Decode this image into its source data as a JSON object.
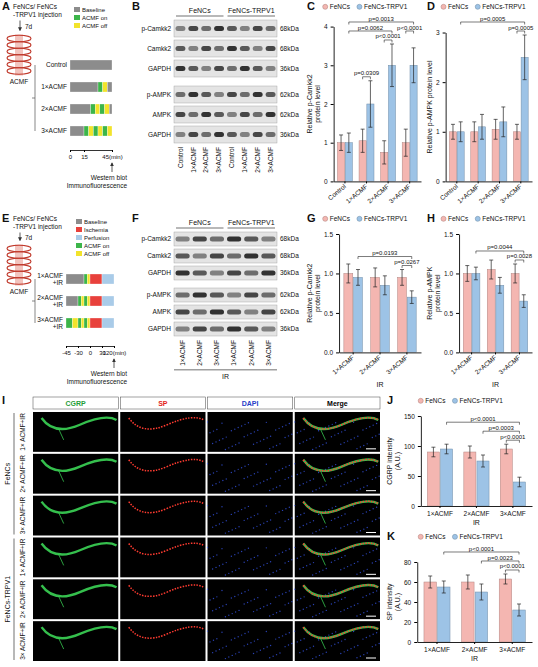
{
  "panels": {
    "A": {
      "panel_label": "A",
      "injection": "FeNCs/ FeNCs -TRPV1 injection",
      "interval": "7d",
      "device": "ACMF",
      "states": [
        {
          "name": "Baseline",
          "color": "#8c8c8c"
        },
        {
          "name": "ACMF on",
          "color": "#3cb54a"
        },
        {
          "name": "ACMF off",
          "color": "#f2e32b"
        }
      ],
      "rows": [
        {
          "label": "Control",
          "segments": [
            [
              0,
              0,
              45
            ]
          ]
        },
        {
          "label": "1×ACMF",
          "segments": [
            [
              0,
              0,
              30
            ],
            [
              1,
              30,
              35
            ],
            [
              2,
              35,
              40
            ],
            [
              0,
              40,
              45
            ]
          ]
        },
        {
          "label": "2×ACMF",
          "segments": [
            [
              0,
              0,
              22
            ],
            [
              1,
              22,
              27
            ],
            [
              2,
              27,
              32
            ],
            [
              1,
              32,
              37
            ],
            [
              2,
              37,
              42
            ],
            [
              0,
              42,
              45
            ]
          ]
        },
        {
          "label": "3×ACMF",
          "segments": [
            [
              0,
              0,
              15
            ],
            [
              1,
              15,
              20
            ],
            [
              2,
              20,
              25
            ],
            [
              1,
              25,
              30
            ],
            [
              2,
              30,
              35
            ],
            [
              1,
              35,
              40
            ],
            [
              2,
              40,
              45
            ]
          ]
        }
      ],
      "time_ticks": [
        0,
        15,
        {
          "value": 45,
          "label": "45(min)"
        }
      ],
      "readouts": [
        "Western blot",
        "Immunofluorescence"
      ]
    },
    "B": {
      "panel_label": "B",
      "groups": [
        "FeNCs",
        "FeNCs-TRPV1"
      ],
      "lanes": [
        "Control",
        "1×ACMF",
        "2×ACMF",
        "3×ACMF",
        "Control",
        "1×ACMF",
        "2×ACMF",
        "3×ACMF"
      ],
      "rows": [
        {
          "label": "p-Camkk2",
          "size": "68kDa"
        },
        {
          "label": "Camkk2",
          "size": "68kDa"
        },
        {
          "label": "GAPDH",
          "size": "36kDa"
        },
        {
          "label": "p-AMPK",
          "size": "62kDa"
        },
        {
          "label": "AMPK",
          "size": "62kDa"
        },
        {
          "label": "GAPDH",
          "size": "36kDa"
        }
      ]
    },
    "E": {
      "panel_label": "E",
      "injection": "FeNCs/ FeNCs -TRPV1 injection",
      "interval": "7d",
      "device": "ACMF",
      "states": [
        {
          "name": "Baseline",
          "color": "#8c8c8c"
        },
        {
          "name": "Ischemia",
          "color": "#e8413c"
        },
        {
          "name": "Perfusion",
          "color": "#a9cbe8"
        },
        {
          "name": "ACMF on",
          "color": "#3cb54a"
        },
        {
          "name": "ACMF off",
          "color": "#f2e32b"
        }
      ],
      "rows": [
        {
          "label": "1×ACMF +IR",
          "segments": [
            [
              0,
              -45,
              -15
            ],
            [
              3,
              -15,
              -7
            ],
            [
              4,
              -7,
              0
            ],
            [
              1,
              0,
              30
            ],
            [
              2,
              30,
              120
            ]
          ]
        },
        {
          "label": "2×ACMF +IR",
          "segments": [
            [
              0,
              -45,
              -30
            ],
            [
              3,
              -30,
              -22
            ],
            [
              4,
              -22,
              -15
            ],
            [
              3,
              -15,
              -7
            ],
            [
              4,
              -7,
              0
            ],
            [
              1,
              0,
              30
            ],
            [
              2,
              30,
              120
            ]
          ]
        },
        {
          "label": "3×ACMF +IR",
          "segments": [
            [
              3,
              -45,
              -37
            ],
            [
              4,
              -37,
              -30
            ],
            [
              3,
              -30,
              -22
            ],
            [
              4,
              -22,
              -15
            ],
            [
              3,
              -15,
              -7
            ],
            [
              4,
              -7,
              0
            ],
            [
              1,
              0,
              30
            ],
            [
              2,
              30,
              120
            ]
          ]
        }
      ],
      "time_ticks": [
        -45,
        -30,
        0,
        30,
        {
          "value": 120,
          "label": "120(min)"
        }
      ],
      "readouts": [
        "Western blot",
        "Immunofluorescence"
      ]
    },
    "F": {
      "panel_label": "F",
      "groups": [
        "FeNCs",
        "FeNCs-TRPV1"
      ],
      "lanes": [
        "1×ACMF",
        "2×ACMF",
        "3×ACMF",
        "1×ACMF",
        "2×ACMF",
        "3×ACMF"
      ],
      "rows": [
        {
          "label": "p-Camkk2",
          "size": "68kDa"
        },
        {
          "label": "Camkk2",
          "size": "68kDa"
        },
        {
          "label": "GAPDH",
          "size": "36kDa"
        },
        {
          "label": "p-AMPK",
          "size": "62kDa"
        },
        {
          "label": "AMPK",
          "size": "62kDa"
        },
        {
          "label": "GAPDH",
          "size": "36kDa"
        }
      ],
      "condition": "IR"
    },
    "I": {
      "panel_label": "I",
      "columns": [
        {
          "name": "CGRP",
          "color": "#1f9e3a"
        },
        {
          "name": "SP",
          "color": "#e3231b"
        },
        {
          "name": "DAPI",
          "color": "#2740c8"
        },
        {
          "name": "Merge",
          "color": "#000000"
        }
      ],
      "groups": [
        {
          "name": "FeNCs",
          "rows": [
            "1× ACMF+IR",
            "2× ACMF+IR",
            "3× ACMF+IR"
          ]
        },
        {
          "name": "FeNCs-TRPV1",
          "rows": [
            "1× ACMF+IR",
            "2× ACMF+IR",
            "3× ACMF+IR"
          ]
        }
      ]
    }
  },
  "chart_data": [
    {
      "panel_label": "C",
      "type": "bar",
      "y_label": "Relative p-Camkk2 protein level",
      "legend": "top",
      "categories": [
        "Control",
        "1×ACMF",
        "2×ACMF",
        "3×ACMF"
      ],
      "series": [
        {
          "name": "FeNCs",
          "color": "#f4b6b1",
          "values": [
            1.0,
            1.05,
            0.75,
            1.0
          ],
          "errors": [
            0.2,
            0.3,
            0.3,
            0.35
          ]
        },
        {
          "name": "FeNCs-TRPV1",
          "color": "#9dc3e6",
          "values": [
            1.0,
            2.0,
            3.0,
            3.0
          ],
          "errors": [
            0.25,
            0.6,
            0.55,
            0.45
          ]
        }
      ],
      "ylim": [
        0,
        4
      ],
      "yticks": [
        0,
        1,
        2,
        3,
        4
      ],
      "annotations": [
        {
          "text": "p=0.0013",
          "from": [
            0,
            1
          ],
          "to": [
            3,
            1
          ]
        },
        {
          "text": "p=0.0062",
          "from": [
            0,
            1
          ],
          "to": [
            2,
            1
          ]
        },
        {
          "text": "p<0.0001",
          "from": [
            2,
            0
          ],
          "to": [
            2,
            1
          ]
        },
        {
          "text": "p=0.0309",
          "from": [
            1,
            0
          ],
          "to": [
            1,
            1
          ]
        },
        {
          "text": "p<0.0001",
          "from": [
            3,
            0
          ],
          "to": [
            3,
            1
          ]
        }
      ]
    },
    {
      "panel_label": "D",
      "type": "bar",
      "y_label": "Relative p-AMPK protein level",
      "legend": "top",
      "categories": [
        "Control",
        "1×ACMF",
        "2×ACMF",
        "3×ACMF"
      ],
      "series": [
        {
          "name": "FeNCs",
          "color": "#f4b6b1",
          "values": [
            1.0,
            1.0,
            1.05,
            1.0
          ],
          "errors": [
            0.15,
            0.2,
            0.2,
            0.15
          ]
        },
        {
          "name": "FeNCs-TRPV1",
          "color": "#9dc3e6",
          "values": [
            1.0,
            1.1,
            1.2,
            2.5
          ],
          "errors": [
            0.2,
            0.25,
            0.3,
            0.45
          ]
        }
      ],
      "ylim": [
        0,
        3
      ],
      "yticks": [
        0,
        1,
        2,
        3
      ],
      "annotations": [
        {
          "text": "p=0.0005",
          "from": [
            0,
            1
          ],
          "to": [
            3,
            1
          ]
        },
        {
          "text": "p=0.0005",
          "from": [
            3,
            0
          ],
          "to": [
            3,
            1
          ]
        }
      ]
    },
    {
      "panel_label": "G",
      "type": "bar",
      "y_label": "Relative p-Camkk2 protein level",
      "x_label": "IR",
      "legend": "top",
      "categories": [
        "1×ACMF",
        "2×ACMF",
        "3×ACMF"
      ],
      "series": [
        {
          "name": "FeNCs",
          "color": "#f4b6b1",
          "values": [
            1.0,
            0.95,
            0.95
          ],
          "errors": [
            0.12,
            0.12,
            0.1
          ]
        },
        {
          "name": "FeNCs-TRPV1",
          "color": "#9dc3e6",
          "values": [
            0.95,
            0.85,
            0.7
          ],
          "errors": [
            0.1,
            0.12,
            0.08
          ]
        }
      ],
      "ylim": [
        0,
        1.5
      ],
      "yticks": [
        {
          "value": 0,
          "label": "0.0"
        },
        {
          "value": 0.5,
          "label": "0.5"
        },
        {
          "value": 1,
          "label": "1.0"
        },
        {
          "value": 1.5,
          "label": "1.5"
        }
      ],
      "annotations": [
        {
          "text": "p=0.0193",
          "from": [
            0,
            1
          ],
          "to": [
            2,
            1
          ]
        },
        {
          "text": "p=0.0267",
          "from": [
            2,
            0
          ],
          "to": [
            2,
            1
          ]
        }
      ]
    },
    {
      "panel_label": "H",
      "type": "bar",
      "y_label": "Relative p-AMPK protein level",
      "x_label": "IR",
      "legend": "top",
      "categories": [
        "1×ACMF",
        "2×ACMF",
        "3×ACMF"
      ],
      "series": [
        {
          "name": "FeNCs",
          "color": "#f4b6b1",
          "values": [
            1.0,
            1.05,
            1.0
          ],
          "errors": [
            0.1,
            0.12,
            0.12
          ]
        },
        {
          "name": "FeNCs-TRPV1",
          "color": "#9dc3e6",
          "values": [
            1.0,
            0.85,
            0.65
          ],
          "errors": [
            0.08,
            0.1,
            0.08
          ]
        }
      ],
      "ylim": [
        0,
        1.5
      ],
      "yticks": [
        {
          "value": 0,
          "label": "0.0"
        },
        {
          "value": 0.5,
          "label": "0.5"
        },
        {
          "value": 1,
          "label": "1.0"
        },
        {
          "value": 1.5,
          "label": "1.5"
        }
      ],
      "annotations": [
        {
          "text": "p=0.0044",
          "from": [
            0,
            1
          ],
          "to": [
            2,
            1
          ]
        },
        {
          "text": "p=0.0028",
          "from": [
            2,
            0
          ],
          "to": [
            2,
            1
          ]
        }
      ]
    },
    {
      "panel_label": "J",
      "type": "bar",
      "y_label": "CGRP intensity (A.U.)",
      "x_label": "IR",
      "legend": "top",
      "categories": [
        "1×ACMF",
        "2×ACMF",
        "3×ACMF"
      ],
      "series": [
        {
          "name": "FeNCs",
          "color": "#f4b6b1",
          "values": [
            90,
            90,
            95
          ],
          "errors": [
            8,
            10,
            8
          ]
        },
        {
          "name": "FeNCs-TRPV1",
          "color": "#9dc3e6",
          "values": [
            95,
            75,
            40
          ],
          "errors": [
            8,
            10,
            8
          ]
        }
      ],
      "ylim": [
        0,
        150
      ],
      "yticks": [
        0,
        50,
        100,
        150
      ],
      "annotations": [
        {
          "text": "p<0.0001",
          "from": [
            0,
            1
          ],
          "to": [
            2,
            1
          ]
        },
        {
          "text": "p=0.0003",
          "from": [
            1,
            1
          ],
          "to": [
            2,
            1
          ]
        },
        {
          "text": "p<0.0001",
          "from": [
            2,
            0
          ],
          "to": [
            2,
            1
          ]
        }
      ]
    },
    {
      "panel_label": "K",
      "type": "bar",
      "y_label": "SP intensity (A.U.)",
      "x_label": "IR",
      "legend": "top",
      "categories": [
        "1×ACMF",
        "2×ACMF",
        "3×ACMF"
      ],
      "series": [
        {
          "name": "FeNCs",
          "color": "#f4b6b1",
          "values": [
            60,
            60,
            63
          ],
          "errors": [
            6,
            7,
            5
          ]
        },
        {
          "name": "FeNCs-TRPV1",
          "color": "#9dc3e6",
          "values": [
            55,
            50,
            32
          ],
          "errors": [
            6,
            8,
            6
          ]
        }
      ],
      "ylim": [
        0,
        80
      ],
      "yticks": [
        0,
        20,
        40,
        60,
        80
      ],
      "annotations": [
        {
          "text": "p<0.0001",
          "from": [
            0,
            1
          ],
          "to": [
            2,
            1
          ]
        },
        {
          "text": "p=0.0023",
          "from": [
            1,
            1
          ],
          "to": [
            2,
            1
          ]
        },
        {
          "text": "p<0.0001",
          "from": [
            2,
            0
          ],
          "to": [
            2,
            1
          ]
        }
      ]
    }
  ]
}
